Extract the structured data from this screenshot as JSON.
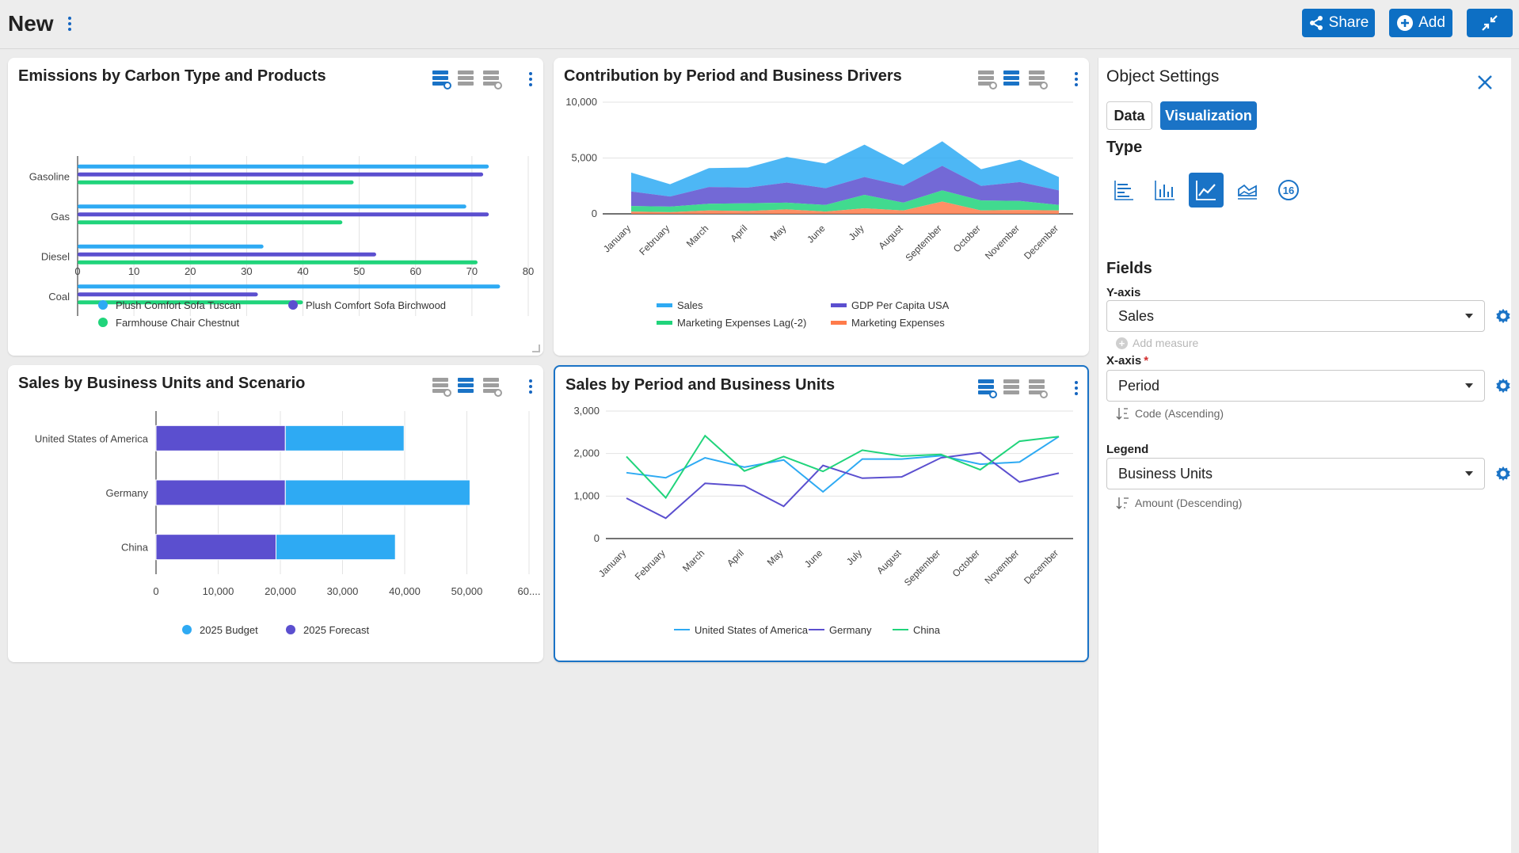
{
  "header": {
    "title": "New",
    "share_label": "Share",
    "add_label": "Add"
  },
  "colors": {
    "accent": "#0d6fc4",
    "series_light_blue": "#2eaaf3",
    "series_indigo": "#5b4fcf",
    "series_green": "#20d47b",
    "series_orange": "#ff7b4a"
  },
  "cards": [
    {
      "title": "Emissions by Carbon Type and Products",
      "chart_data": {
        "type": "bar",
        "orientation": "horizontal",
        "title": "Emissions by Carbon Type and Products",
        "categories": [
          "Gasoline",
          "Gas",
          "Diesel",
          "Coal"
        ],
        "xlim": [
          0,
          80
        ],
        "x_ticks": [
          "0",
          "10",
          "20",
          "30",
          "40",
          "50",
          "60",
          "70",
          "80"
        ],
        "legend_position": "bottom",
        "grid": true,
        "series": [
          {
            "name": "Plush Comfort Sofa Tuscan",
            "color": "#2eaaf3",
            "values": [
              73,
              69,
              33,
              75
            ]
          },
          {
            "name": "Plush Comfort Sofa Birchwood",
            "color": "#5b4fcf",
            "values": [
              72,
              73,
              53,
              32
            ]
          },
          {
            "name": "Farmhouse Chair Chestnut",
            "color": "#20d47b",
            "values": [
              49,
              47,
              71,
              40
            ]
          }
        ]
      }
    },
    {
      "title": "Contribution by Period and Business Drivers",
      "chart_data": {
        "type": "area",
        "stacked": true,
        "title": "Contribution by Period and Business Drivers",
        "categories": [
          "January",
          "February",
          "March",
          "April",
          "May",
          "June",
          "July",
          "August",
          "September",
          "October",
          "November",
          "December"
        ],
        "ylim": [
          0,
          10000
        ],
        "y_ticks": [
          "10,000",
          "5,000",
          "0"
        ],
        "legend_position": "bottom",
        "grid": true,
        "series": [
          {
            "name": "Marketing Expenses",
            "color": "#ff7b4a",
            "values": [
              200,
              150,
              300,
              250,
              400,
              200,
              500,
              300,
              1100,
              300,
              350,
              300
            ]
          },
          {
            "name": "Marketing Expenses Lag(-2)",
            "color": "#20d47b",
            "values": [
              500,
              500,
              600,
              700,
              600,
              600,
              1200,
              700,
              1000,
              900,
              800,
              500
            ]
          },
          {
            "name": "GDP Per Capita USA",
            "color": "#5b4fcf",
            "values": [
              1300,
              900,
              1500,
              1400,
              1800,
              1500,
              1600,
              1500,
              2200,
              1300,
              1700,
              1300
            ]
          },
          {
            "name": "Sales",
            "color": "#2eaaf3",
            "values": [
              1700,
              1100,
              1700,
              1800,
              2300,
              2200,
              2900,
              1900,
              2200,
              1500,
              2000,
              1200
            ]
          }
        ]
      }
    },
    {
      "title": "Sales by Business Units and Scenario",
      "chart_data": {
        "type": "bar",
        "orientation": "horizontal",
        "stacked": true,
        "title": "Sales by Business Units and Scenario",
        "categories": [
          "United States of America",
          "Germany",
          "China"
        ],
        "xlim": [
          0,
          60000
        ],
        "x_ticks": [
          "0",
          "10,000",
          "20,000",
          "30,000",
          "40,000",
          "50,000",
          "60...."
        ],
        "legend_position": "bottom",
        "grid": true,
        "series": [
          {
            "name": "2025 Forecast",
            "color": "#5b4fcf",
            "values": [
              20800,
              20800,
              19300
            ]
          },
          {
            "name": "2025 Budget",
            "color": "#2eaaf3",
            "values": [
              19100,
              29700,
              19200
            ]
          }
        ],
        "legend_order": [
          "2025 Budget",
          "2025 Forecast"
        ]
      }
    },
    {
      "title": "Sales by Period and Business Units",
      "chart_data": {
        "type": "line",
        "title": "Sales by Period and Business Units",
        "categories": [
          "January",
          "February",
          "March",
          "April",
          "May",
          "June",
          "July",
          "August",
          "September",
          "October",
          "November",
          "December"
        ],
        "ylim": [
          0,
          3000
        ],
        "y_ticks": [
          "3,000",
          "2,000",
          "1,000",
          "0"
        ],
        "legend_position": "bottom",
        "grid": true,
        "series": [
          {
            "name": "United States of America",
            "color": "#2eaaf3",
            "values": [
              1550,
              1430,
              1900,
              1680,
              1850,
              1100,
              1870,
              1870,
              1950,
              1750,
              1800,
              2400
            ]
          },
          {
            "name": "Germany",
            "color": "#5b4fcf",
            "values": [
              950,
              480,
              1300,
              1240,
              760,
              1720,
              1420,
              1450,
              1900,
              2020,
              1330,
              1540
            ]
          },
          {
            "name": "China",
            "color": "#20d47b",
            "values": [
              1930,
              960,
              2420,
              1590,
              1930,
              1580,
              2080,
              1940,
              1980,
              1620,
              2290,
              2400
            ]
          }
        ]
      }
    }
  ],
  "settings": {
    "title": "Object Settings",
    "tab_data": "Data",
    "tab_visualization": "Visualization",
    "type_heading": "Type",
    "type_options": [
      "bar-horizontal-icon",
      "bar-vertical-icon",
      "line-chart-icon",
      "area-chart-icon",
      "number-kpi-icon"
    ],
    "active_type": "line-chart-icon",
    "kpi_icon_text": "16",
    "fields_heading": "Fields",
    "y_axis_label": "Y-axis",
    "y_axis_value": "Sales",
    "add_measure_label": "Add measure",
    "x_axis_label": "X-axis",
    "x_axis_required": "*",
    "x_axis_value": "Period",
    "x_axis_sort": "Code (Ascending)",
    "legend_label": "Legend",
    "legend_value": "Business Units",
    "legend_sort": "Amount (Descending)"
  }
}
